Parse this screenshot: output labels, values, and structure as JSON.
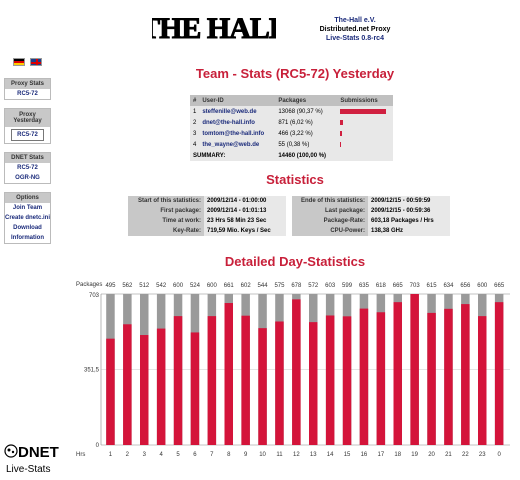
{
  "header": {
    "logo_text": "THE HALL",
    "org": "The-Hall e.V.",
    "proxy": "Distributed.net Proxy",
    "version": "Live-Stats 0.8-rc4"
  },
  "sidebar": {
    "languages": [
      "de-flag-icon",
      "uk-flag-icon"
    ],
    "sections": [
      {
        "title": "Proxy Stats",
        "items": [
          "RC5-72"
        ]
      },
      {
        "title": "Proxy Yesterday",
        "items": [
          "RC5-72"
        ]
      },
      {
        "title": "DNET Stats",
        "items": [
          "RC5-72",
          "OGR-NG"
        ]
      },
      {
        "title": "Options",
        "items": [
          "Join Team",
          "Create dnetc.ini",
          "Download",
          "Information"
        ]
      }
    ]
  },
  "team": {
    "title": "Team - Stats (RC5-72) Yesterday",
    "columns": [
      "#",
      "User-ID",
      "Packages",
      "Submissions"
    ],
    "rows": [
      {
        "n": "1",
        "user": "steffenille@web.de",
        "packages": "13068",
        "pct": "(90,37 %)",
        "share": 0.9037
      },
      {
        "n": "2",
        "user": "dnet@the-hall.info",
        "packages": "871",
        "pct": "(6,02 %)",
        "share": 0.0602
      },
      {
        "n": "3",
        "user": "tomtom@the-hall.info",
        "packages": "466",
        "pct": "(3,22 %)",
        "share": 0.0322
      },
      {
        "n": "4",
        "user": "the_wayne@web.de",
        "packages": "55",
        "pct": "(0,38 %)",
        "share": 0.0038
      }
    ],
    "summary": {
      "label": "SUMMARY:",
      "packages": "14460",
      "pct": "(100,00 %)"
    }
  },
  "statistics": {
    "title": "Statistics",
    "left": [
      {
        "k": "Start of this statistics:",
        "v": "2009/12/14 - 01:00:00"
      },
      {
        "k": "First package:",
        "v": "2009/12/14 - 01:01:13"
      },
      {
        "k": "Time at work:",
        "v": "23 Hrs 58 Min 23 Sec"
      },
      {
        "k": "Key-Rate:",
        "v": "719,59 Mio. Keys / Sec"
      }
    ],
    "right": [
      {
        "k": "Ende of this statistics:",
        "v": "2009/12/15 - 00:59:59"
      },
      {
        "k": "Last package:",
        "v": "2009/12/15 - 00:59:36"
      },
      {
        "k": "Package-Rate:",
        "v": "603,18 Packages / Hrs"
      },
      {
        "k": "CPU-Power:",
        "v": "138,38 GHz"
      }
    ]
  },
  "daily": {
    "title": "Detailed Day-Statistics",
    "packages_label": "Packages",
    "hrs_label": "Hrs"
  },
  "chart_data": {
    "type": "bar",
    "categories": [
      "1",
      "2",
      "3",
      "4",
      "5",
      "6",
      "7",
      "8",
      "9",
      "10",
      "11",
      "12",
      "13",
      "14",
      "15",
      "16",
      "17",
      "18",
      "19",
      "20",
      "21",
      "22",
      "23",
      "0"
    ],
    "values": [
      495,
      562,
      512,
      542,
      600,
      524,
      600,
      661,
      602,
      544,
      575,
      678,
      572,
      603,
      599,
      635,
      618,
      665,
      703,
      615,
      634,
      656,
      600,
      665
    ],
    "max": 703,
    "yticks": [
      "703",
      "351,5",
      "0"
    ],
    "colors": {
      "bar": "#d4143a",
      "background": "#9a9a9a"
    }
  },
  "footer": {
    "logo_text": "DNET",
    "logo_sub": "Live-Stats"
  }
}
